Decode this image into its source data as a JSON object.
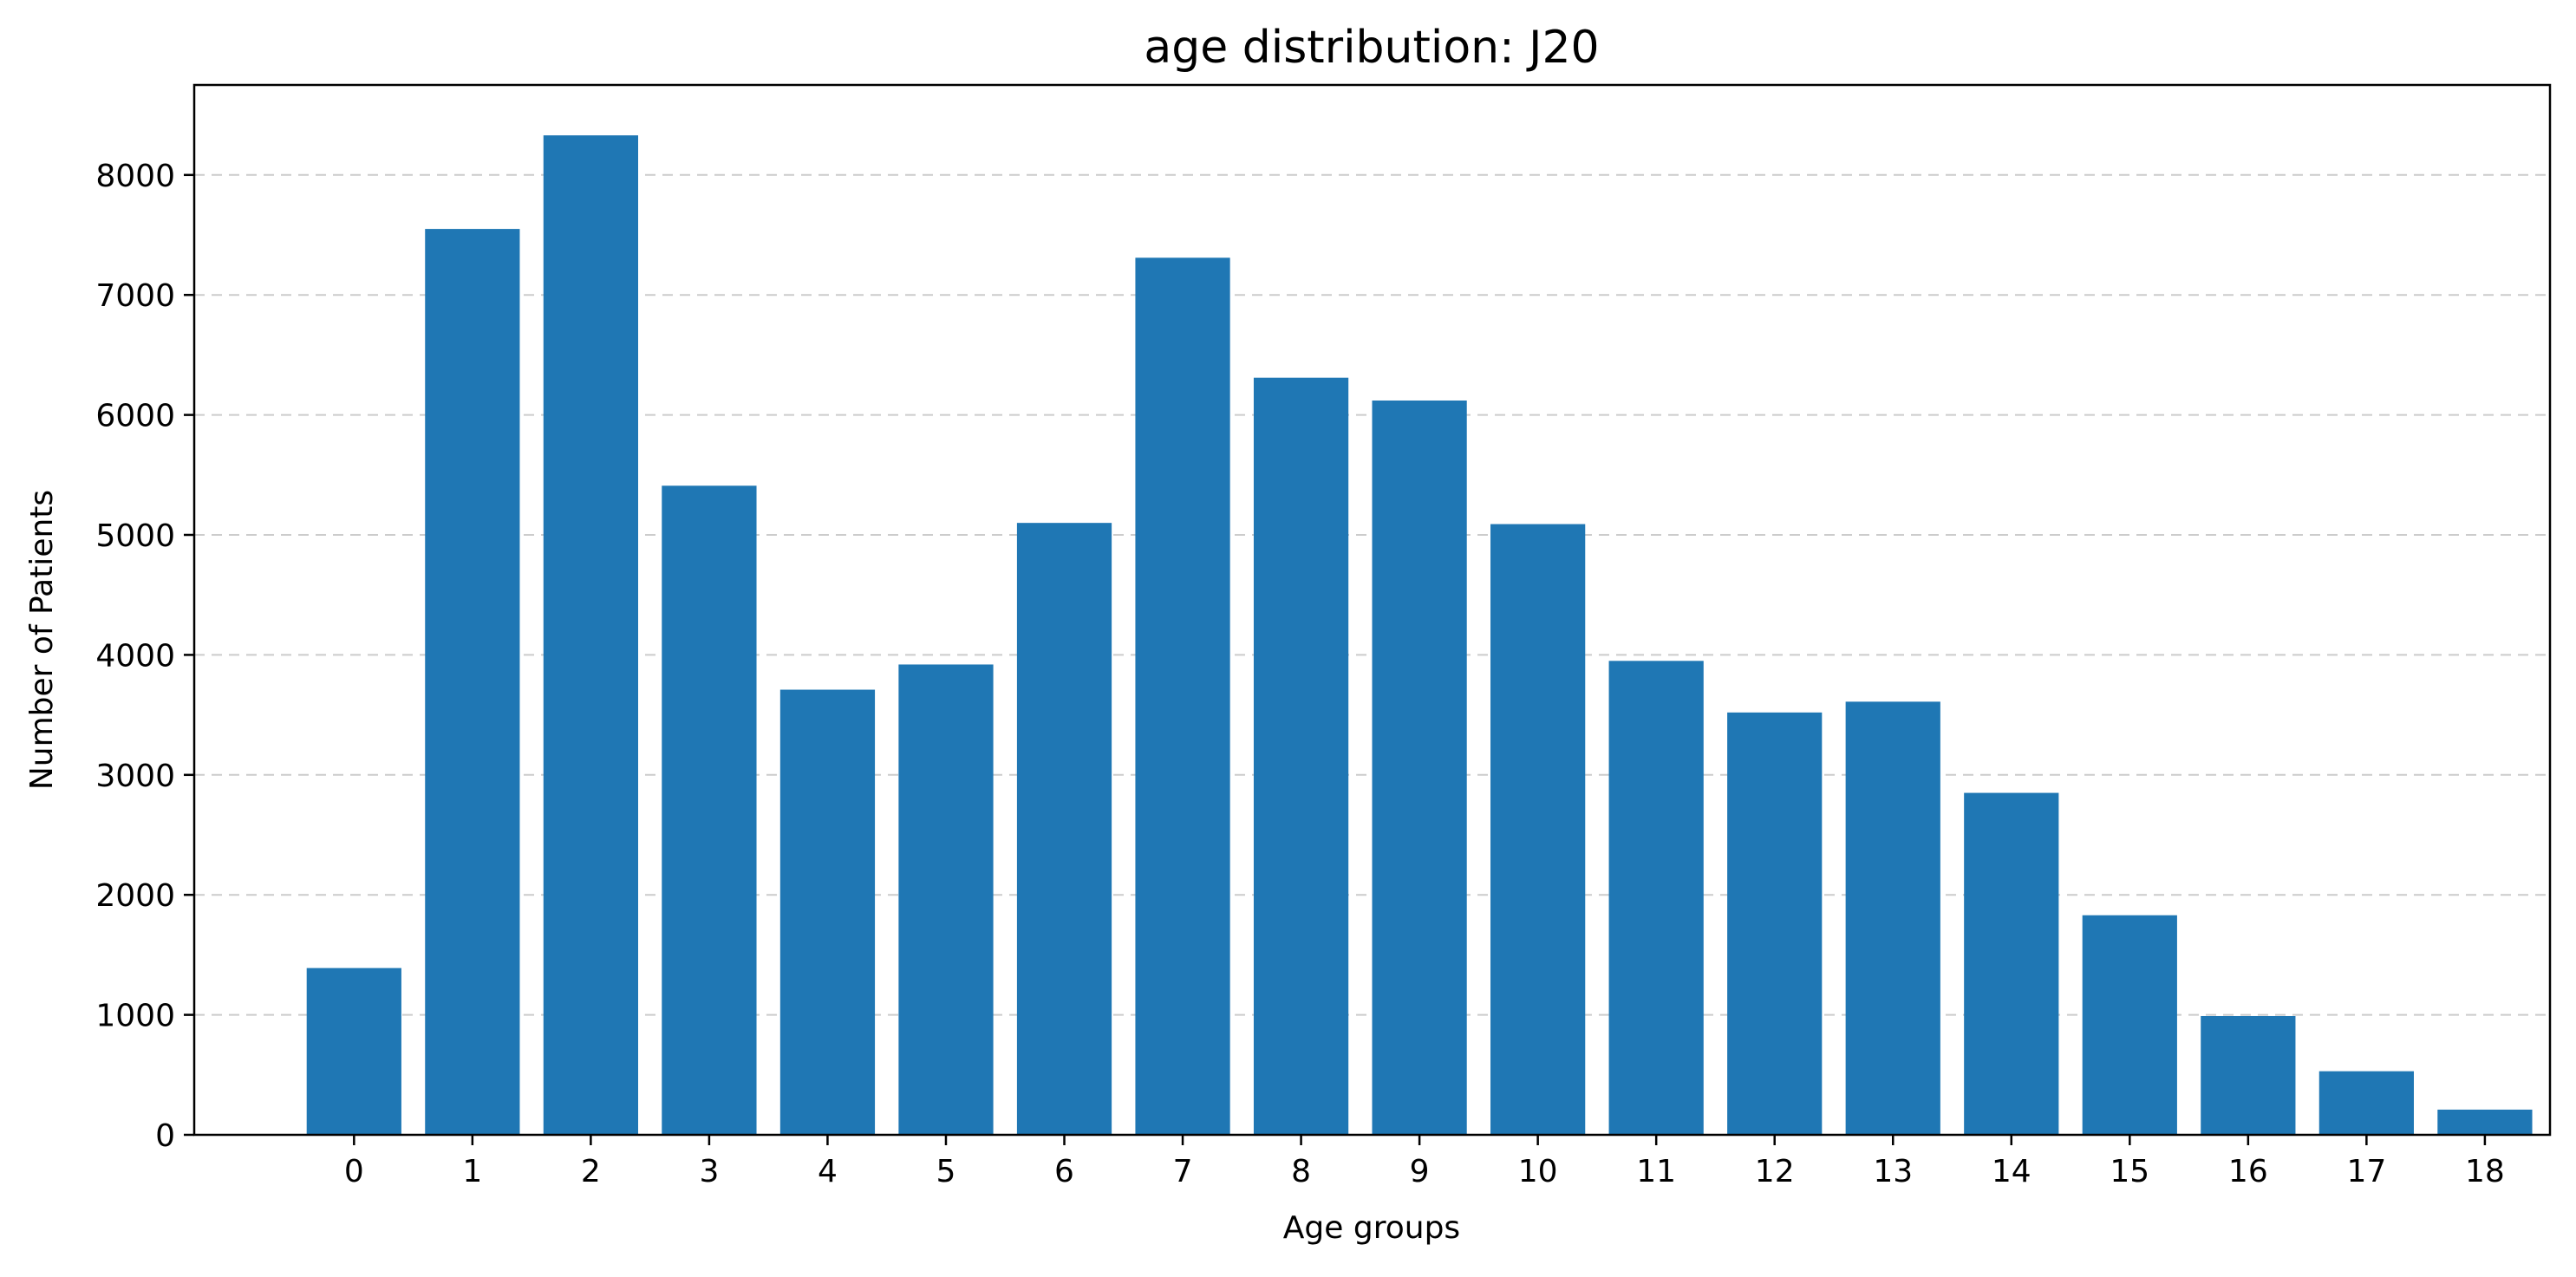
{
  "chart_data": {
    "type": "bar",
    "title": "age distribution: J20",
    "xlabel": "Age groups",
    "ylabel": "Number of Patients",
    "categories": [
      "0",
      "1",
      "2",
      "3",
      "4",
      "5",
      "6",
      "7",
      "8",
      "9",
      "10",
      "11",
      "12",
      "13",
      "14",
      "15",
      "16",
      "17",
      "18"
    ],
    "values": [
      1390,
      7550,
      8330,
      5410,
      3710,
      3920,
      5100,
      7310,
      6310,
      6120,
      5090,
      3950,
      3520,
      3610,
      2850,
      1830,
      990,
      530,
      210
    ],
    "ylim": [
      0,
      8750
    ],
    "xlim": [
      -1.35,
      18.55
    ],
    "yticks": [
      0,
      1000,
      2000,
      3000,
      4000,
      5000,
      6000,
      7000,
      8000
    ],
    "grid": "y, dashed",
    "legend": "none",
    "bar_color": "#1f77b4"
  }
}
